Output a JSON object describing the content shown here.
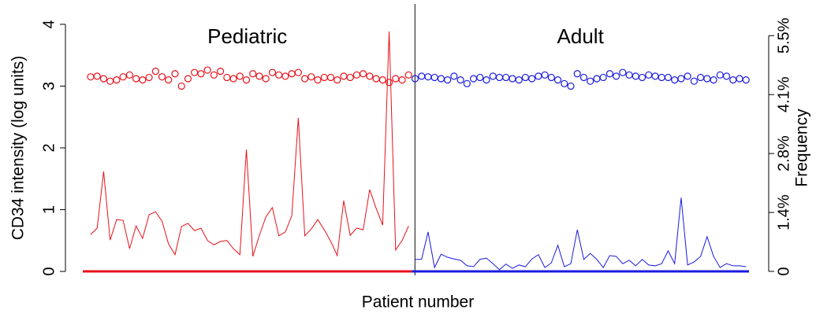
{
  "chart_data": {
    "type": "line",
    "ylabel": "CD34 intensity (log units)",
    "y2label": "Frequency",
    "xlabel": "Patient number",
    "ylim": [
      -0.19,
      4.33
    ],
    "yticks": [
      0,
      1,
      2,
      3,
      4
    ],
    "y2lim": [
      -0.275,
      6.24
    ],
    "y2ticks": [
      {
        "value": 0,
        "label": "0"
      },
      {
        "value": 1.375,
        "label": "1.4%"
      },
      {
        "value": 2.75,
        "label": "2.8%"
      },
      {
        "value": 4.125,
        "label": "4.1%"
      },
      {
        "value": 5.5,
        "label": "5.5%"
      }
    ],
    "groups": [
      {
        "label": "Pediatric",
        "color": "#e8111a",
        "intensity": [
          3.15,
          3.16,
          3.12,
          3.08,
          3.1,
          3.15,
          3.18,
          3.12,
          3.1,
          3.14,
          3.24,
          3.15,
          3.1,
          3.2,
          3.0,
          3.12,
          3.22,
          3.2,
          3.26,
          3.18,
          3.24,
          3.14,
          3.12,
          3.16,
          3.1,
          3.2,
          3.16,
          3.12,
          3.22,
          3.18,
          3.16,
          3.2,
          3.22,
          3.12,
          3.15,
          3.1,
          3.14,
          3.14,
          3.1,
          3.16,
          3.14,
          3.18,
          3.2,
          3.16,
          3.12,
          3.1,
          3.06,
          3.12,
          3.1,
          3.18
        ],
        "frequency": [
          0.86,
          1.01,
          2.33,
          0.73,
          1.21,
          1.19,
          0.53,
          1.06,
          0.77,
          1.32,
          1.39,
          1.17,
          0.64,
          0.39,
          1.05,
          1.12,
          0.95,
          1.01,
          0.72,
          0.62,
          0.7,
          0.72,
          0.53,
          0.39,
          2.84,
          0.35,
          0.84,
          1.27,
          1.49,
          0.83,
          0.92,
          1.3,
          3.58,
          0.83,
          0.99,
          1.21,
          0.97,
          0.7,
          0.37,
          1.65,
          0.84,
          1.01,
          0.97,
          1.91,
          1.47,
          1.08,
          5.6,
          0.5,
          0.72,
          1.06
        ]
      },
      {
        "label": "Adult",
        "color": "#1a1adf",
        "intensity": [
          3.12,
          3.16,
          3.15,
          3.14,
          3.12,
          3.1,
          3.16,
          3.1,
          3.04,
          3.12,
          3.14,
          3.1,
          3.16,
          3.14,
          3.14,
          3.12,
          3.1,
          3.14,
          3.12,
          3.16,
          3.18,
          3.14,
          3.1,
          3.04,
          3.0,
          3.2,
          3.14,
          3.08,
          3.12,
          3.14,
          3.2,
          3.16,
          3.22,
          3.18,
          3.16,
          3.14,
          3.18,
          3.16,
          3.14,
          3.14,
          3.1,
          3.12,
          3.16,
          3.08,
          3.14,
          3.12,
          3.1,
          3.18,
          3.16,
          3.1,
          3.12,
          3.1
        ],
        "frequency": [
          0.28,
          0.28,
          0.92,
          0.09,
          0.4,
          0.33,
          0.29,
          0.26,
          0.13,
          0.11,
          0.28,
          0.31,
          0.18,
          0.04,
          0.17,
          0.07,
          0.15,
          0.11,
          0.29,
          0.39,
          0.09,
          0.2,
          0.61,
          0.11,
          0.18,
          0.97,
          0.28,
          0.42,
          0.28,
          0.09,
          0.37,
          0.35,
          0.18,
          0.26,
          0.13,
          0.28,
          0.15,
          0.13,
          0.18,
          0.48,
          0.18,
          1.72,
          0.15,
          0.22,
          0.35,
          0.81,
          0.35,
          0.09,
          0.18,
          0.13,
          0.13,
          0.11
        ]
      }
    ]
  }
}
